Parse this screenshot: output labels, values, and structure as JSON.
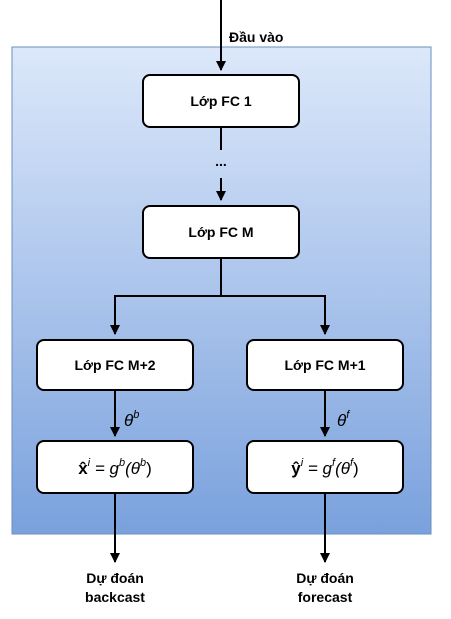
{
  "input_label": "Đầu vào",
  "nodes": {
    "fc1": "Lớp FC 1",
    "ellipsis": "...",
    "fcM": "Lớp FC M",
    "fcM2": "Lớp FC M+2",
    "fcM1": "Lớp FC M+1"
  },
  "params": {
    "theta_b_base": "θ",
    "theta_b_sup": "b",
    "theta_f_base": "θ",
    "theta_f_sup": "f"
  },
  "formulas": {
    "backcast": {
      "lhs_base": "x̂",
      "lhs_sup": "i",
      "eq": " = g",
      "g_sup": "b",
      "arg_open": "(θ",
      "arg_sup": "b",
      "arg_close": ")"
    },
    "forecast": {
      "lhs_base": "ŷ",
      "lhs_sup": "i",
      "eq": " = g",
      "g_sup": "f",
      "arg_open": "(θ",
      "arg_sup": "f",
      "arg_close": ")"
    }
  },
  "outputs": {
    "backcast_line1": "Dự đoán",
    "backcast_line2": "backcast",
    "forecast_line1": "Dự đoán",
    "forecast_line2": "forecast"
  },
  "colors": {
    "panel_top": "#dce8fa",
    "panel_bottom": "#7aa1dd",
    "panel_border": "#6c8ebf"
  }
}
